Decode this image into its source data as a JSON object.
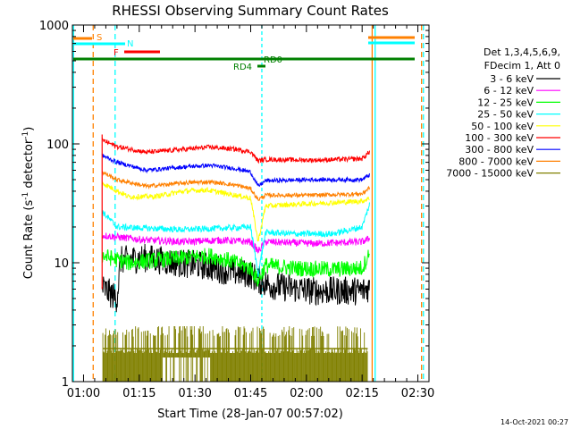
{
  "chart_data": {
    "type": "line",
    "title": "RHESSI Observing Summary Count Rates",
    "xlabel": "Start Time (28-Jan-07 00:57:02)",
    "ylabel_main": "Count Rate (s",
    "ylabel_sup1": "-1",
    "ylabel_mid": " detector",
    "ylabel_sup2": "-1",
    "ylabel_end": ")",
    "y_scale": "log",
    "ylim": [
      1,
      1000
    ],
    "xlim_minutes": [
      0,
      96
    ],
    "x_ticks": [
      {
        "t": 3,
        "label": "01:00"
      },
      {
        "t": 18,
        "label": "01:15"
      },
      {
        "t": 33,
        "label": "01:30"
      },
      {
        "t": 48,
        "label": "01:45"
      },
      {
        "t": 63,
        "label": "02:00"
      },
      {
        "t": 78,
        "label": "02:15"
      },
      {
        "t": 93,
        "label": "02:30"
      }
    ],
    "y_ticks": [
      {
        "v": 1,
        "label": "1"
      },
      {
        "v": 10,
        "label": "10"
      },
      {
        "v": 100,
        "label": "100"
      },
      {
        "v": 1000,
        "label": "1000"
      }
    ],
    "legend": {
      "placement": "right",
      "header1": "Det 1,3,4,5,6,9,",
      "header2": "FDecim 1, Att 0"
    },
    "series": [
      {
        "name": "3 - 6 keV",
        "color": "#000000",
        "profile": [
          [
            8,
            6.2
          ],
          [
            12,
            5.0
          ],
          [
            13,
            10.5
          ],
          [
            20,
            11
          ],
          [
            28,
            10
          ],
          [
            35,
            9.5
          ],
          [
            42,
            8.5
          ],
          [
            48,
            8
          ],
          [
            50,
            7.2
          ],
          [
            53,
            6.5
          ],
          [
            57,
            6.2
          ],
          [
            65,
            5.8
          ],
          [
            78,
            5.8
          ],
          [
            80,
            6.2
          ]
        ],
        "noise": 0.28
      },
      {
        "name": "6 - 12 keV",
        "color": "#ff00ff",
        "profile": [
          [
            8,
            17
          ],
          [
            20,
            15.5
          ],
          [
            30,
            15
          ],
          [
            40,
            15.5
          ],
          [
            48,
            15
          ],
          [
            50,
            12.5
          ],
          [
            52,
            15
          ],
          [
            65,
            14.5
          ],
          [
            78,
            15
          ],
          [
            80,
            16
          ]
        ],
        "noise": 0.07
      },
      {
        "name": "12 - 25 keV",
        "color": "#00ff00",
        "profile": [
          [
            8,
            11.5
          ],
          [
            15,
            10
          ],
          [
            22,
            10.5
          ],
          [
            30,
            11
          ],
          [
            37,
            11.5
          ],
          [
            42,
            10.5
          ],
          [
            48,
            9
          ],
          [
            50,
            7
          ],
          [
            52,
            9.5
          ],
          [
            60,
            9
          ],
          [
            70,
            8.8
          ],
          [
            78,
            9
          ],
          [
            80,
            12
          ]
        ],
        "noise": 0.16
      },
      {
        "name": "25 - 50 keV",
        "color": "#00ffff",
        "profile": [
          [
            8,
            27
          ],
          [
            12,
            20
          ],
          [
            20,
            19.5
          ],
          [
            30,
            19
          ],
          [
            40,
            19.5
          ],
          [
            48,
            20
          ],
          [
            50,
            8
          ],
          [
            52,
            18
          ],
          [
            60,
            17.5
          ],
          [
            70,
            17.5
          ],
          [
            78,
            20
          ],
          [
            80,
            31
          ]
        ],
        "noise": 0.06
      },
      {
        "name": "50 - 100 keV",
        "color": "#ffff00",
        "profile": [
          [
            8,
            47
          ],
          [
            15,
            36
          ],
          [
            22,
            36
          ],
          [
            30,
            40
          ],
          [
            36,
            41
          ],
          [
            42,
            38
          ],
          [
            48,
            35
          ],
          [
            50,
            15
          ],
          [
            52,
            30
          ],
          [
            60,
            31
          ],
          [
            70,
            32
          ],
          [
            78,
            33
          ],
          [
            80,
            35
          ]
        ],
        "noise": 0.05
      },
      {
        "name": "100 - 300 keV",
        "color": "#ff0000",
        "profile": [
          [
            8,
            108
          ],
          [
            12,
            95
          ],
          [
            20,
            85
          ],
          [
            30,
            90
          ],
          [
            37,
            94
          ],
          [
            44,
            90
          ],
          [
            48,
            86
          ],
          [
            50,
            72
          ],
          [
            52,
            74
          ],
          [
            65,
            73
          ],
          [
            78,
            75
          ],
          [
            80,
            86
          ]
        ],
        "noise": 0.045
      },
      {
        "name": "300 - 800 keV",
        "color": "#0000ff",
        "profile": [
          [
            8,
            80
          ],
          [
            12,
            70
          ],
          [
            20,
            60
          ],
          [
            30,
            64
          ],
          [
            37,
            66
          ],
          [
            44,
            62
          ],
          [
            48,
            58
          ],
          [
            50,
            44
          ],
          [
            52,
            49
          ],
          [
            65,
            50
          ],
          [
            78,
            50
          ],
          [
            80,
            55
          ]
        ],
        "noise": 0.04
      },
      {
        "name": "800 - 7000 keV",
        "color": "#ff8000",
        "profile": [
          [
            8,
            58
          ],
          [
            12,
            50
          ],
          [
            20,
            44
          ],
          [
            30,
            47
          ],
          [
            37,
            48
          ],
          [
            44,
            45
          ],
          [
            48,
            42
          ],
          [
            50,
            34
          ],
          [
            52,
            37
          ],
          [
            65,
            37
          ],
          [
            78,
            38
          ],
          [
            80,
            43
          ]
        ],
        "noise": 0.04
      },
      {
        "name": "7000 - 15000 keV",
        "color": "#808000",
        "profile": [],
        "noise": 0
      }
    ],
    "flags": [
      {
        "label": "S",
        "color": "#ff8000"
      },
      {
        "label": "N",
        "color": "#00ffff"
      },
      {
        "label": "F",
        "color": "#ff0000"
      },
      {
        "label": "RD0",
        "color": "#008000"
      },
      {
        "label": "RD4",
        "color": "#008000"
      }
    ]
  },
  "timestamp": "14-Oct-2021 00:27"
}
